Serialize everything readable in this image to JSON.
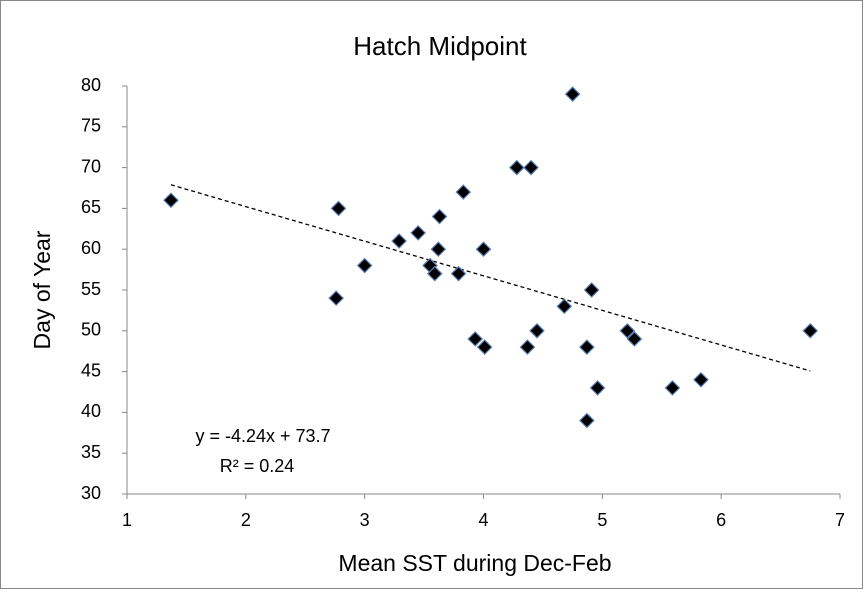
{
  "chart_data": {
    "type": "scatter",
    "title": "Hatch Midpoint",
    "x_label": "Mean SST during Dec-Feb",
    "y_label": "Day of Year",
    "xlim": [
      1,
      7
    ],
    "xticks": [
      1,
      2,
      3,
      4,
      5,
      6,
      7
    ],
    "ylim": [
      30,
      80
    ],
    "yticks": [
      30,
      35,
      40,
      45,
      50,
      55,
      60,
      65,
      70,
      75,
      80
    ],
    "grid": false,
    "color": "#000000",
    "x": [
      1.37,
      2.78,
      2.76,
      3.0,
      3.29,
      3.45,
      3.55,
      3.59,
      3.62,
      3.63,
      3.79,
      3.83,
      3.93,
      4.01,
      4.0,
      4.28,
      4.4,
      4.37,
      4.45,
      4.75,
      4.68,
      4.91,
      4.87,
      4.87,
      4.96,
      5.21,
      5.27,
      5.59,
      5.83,
      6.75
    ],
    "values": [
      66,
      65,
      54,
      58,
      61,
      62,
      58,
      57,
      60,
      64,
      57,
      67,
      49,
      48,
      60,
      70,
      70,
      48,
      50,
      79,
      53,
      55,
      48,
      39,
      43,
      50,
      49,
      43,
      44,
      50
    ],
    "trendline": {
      "slope": -4.24,
      "intercept": 73.7,
      "x_range": [
        1.37,
        6.75
      ],
      "equation": "y = -4.24x + 73.7",
      "r_squared": "R² = 0.24"
    }
  }
}
